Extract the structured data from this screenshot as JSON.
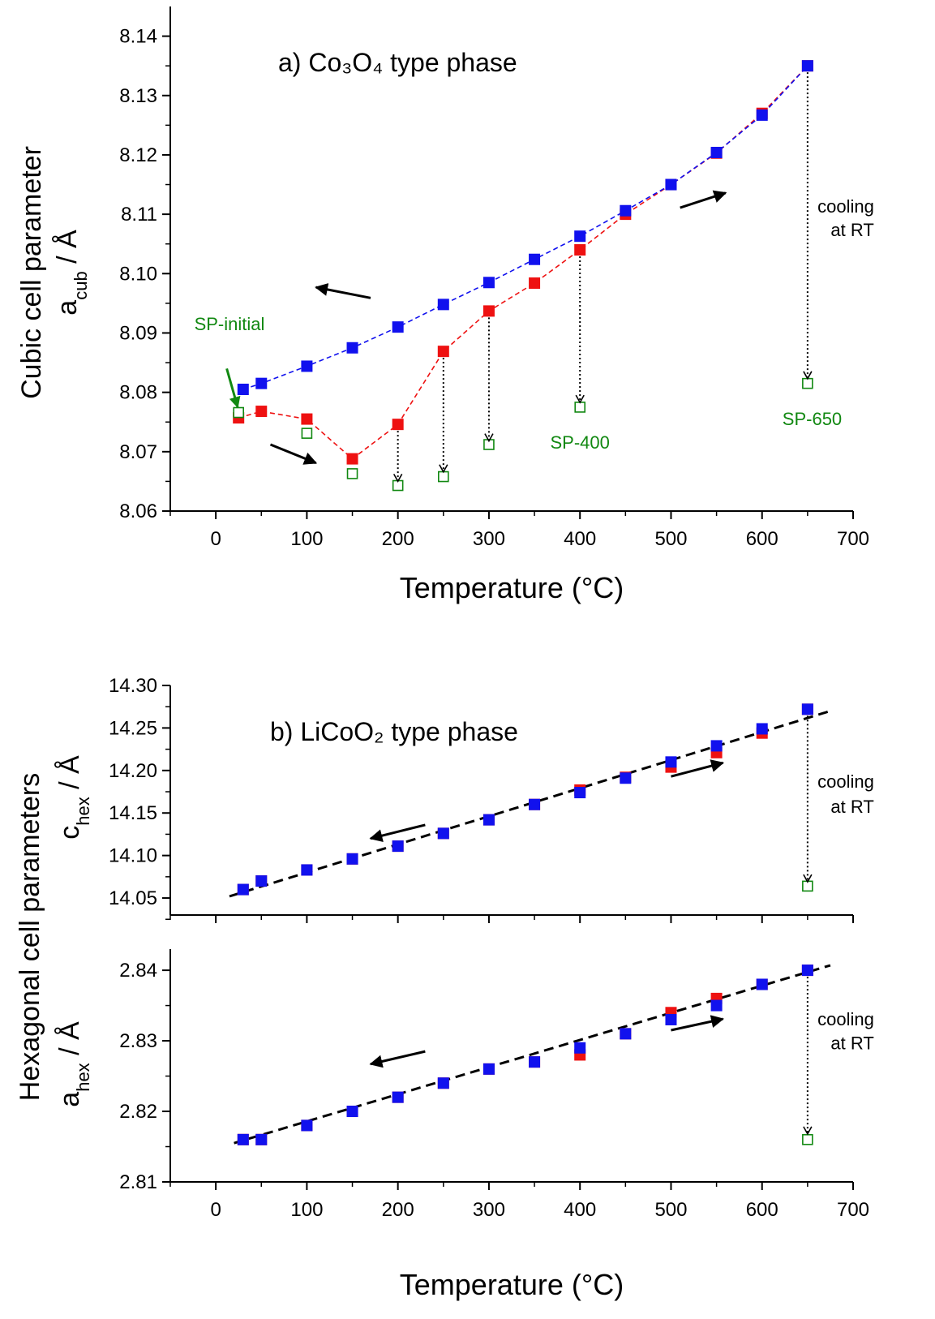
{
  "chart_data": [
    {
      "type": "scatter",
      "title": "a) Co₃O₄ type phase",
      "xlabel": "Temperature (°C)",
      "ylabel_line1": "Cubic cell parameter",
      "ylabel_line2_main": "a",
      "ylabel_line2_sub": "cub",
      "ylabel_line2_rest": " / Å",
      "xlim": [
        -50,
        700
      ],
      "ylim": [
        8.06,
        8.145
      ],
      "xticks": [
        0,
        100,
        200,
        300,
        400,
        500,
        600,
        700
      ],
      "xtick_labels": [
        "0",
        "100",
        "200",
        "300",
        "400",
        "500",
        "600",
        "700"
      ],
      "yticks": [
        8.06,
        8.07,
        8.08,
        8.09,
        8.1,
        8.11,
        8.12,
        8.13,
        8.14
      ],
      "ytick_labels": [
        "8.06",
        "8.07",
        "8.08",
        "8.09",
        "8.10",
        "8.11",
        "8.12",
        "8.13",
        "8.14"
      ],
      "series": [
        {
          "role": "heating",
          "color": "#ee1111",
          "marker": "filled-square",
          "line": "dashed",
          "points": [
            [
              25,
              8.0757
            ],
            [
              50,
              8.0768
            ],
            [
              100,
              8.0755
            ],
            [
              150,
              8.0688
            ],
            [
              200,
              8.0746
            ],
            [
              250,
              8.0869
            ],
            [
              300,
              8.0937
            ],
            [
              350,
              8.0984
            ],
            [
              400,
              8.104
            ],
            [
              450,
              8.11
            ],
            [
              500,
              8.115
            ],
            [
              550,
              8.1203
            ],
            [
              600,
              8.127
            ],
            [
              650,
              8.135
            ]
          ]
        },
        {
          "role": "cooling",
          "color": "#1111ee",
          "marker": "filled-square",
          "line": "dashed",
          "points": [
            [
              30,
              8.0805
            ],
            [
              50,
              8.0815
            ],
            [
              100,
              8.0844
            ],
            [
              150,
              8.0875
            ],
            [
              200,
              8.091
            ],
            [
              250,
              8.0948
            ],
            [
              300,
              8.0985
            ],
            [
              350,
              8.1024
            ],
            [
              400,
              8.1063
            ],
            [
              450,
              8.1106
            ],
            [
              500,
              8.115
            ],
            [
              550,
              8.1204
            ],
            [
              600,
              8.1267
            ],
            [
              650,
              8.135
            ]
          ]
        },
        {
          "role": "room-temperature",
          "color": "#118811",
          "marker": "open-square",
          "line": "none",
          "points": [
            [
              25,
              8.0766
            ],
            [
              100,
              8.0731
            ],
            [
              150,
              8.0663
            ],
            [
              200,
              8.0643
            ],
            [
              250,
              8.0658
            ],
            [
              300,
              8.0712
            ],
            [
              400,
              8.0775
            ],
            [
              650,
              8.0815
            ]
          ]
        }
      ],
      "drop_arrows": [
        [
          200,
          8.0746,
          8.065
        ],
        [
          250,
          8.0869,
          8.0666
        ],
        [
          300,
          8.0937,
          8.0718
        ],
        [
          400,
          8.104,
          8.0783
        ],
        [
          650,
          8.135,
          8.0823
        ]
      ],
      "direction_arrows": [
        {
          "from": [
            170,
            8.0959
          ],
          "to": [
            110,
            8.0977
          ]
        },
        {
          "from": [
            60,
            8.0712
          ],
          "to": [
            110,
            8.0681
          ]
        },
        {
          "from": [
            510,
            8.1111
          ],
          "to": [
            560,
            8.1136
          ]
        }
      ],
      "annotations": [
        {
          "text": "SP-initial",
          "x": 15,
          "y": 8.0905,
          "anchor": "middle",
          "color": "#118811"
        },
        {
          "text": "SP-400",
          "x": 400,
          "y": 8.0705,
          "anchor": "middle",
          "color": "#118811"
        },
        {
          "text": "SP-650",
          "x": 655,
          "y": 8.0745,
          "anchor": "middle",
          "color": "#118811"
        },
        {
          "text": "cooling",
          "x": 723,
          "y": 8.1103,
          "anchor": "end",
          "color": "#000000"
        },
        {
          "text": "at RT",
          "x": 723,
          "y": 8.1063,
          "anchor": "end",
          "color": "#000000"
        }
      ],
      "pointer": {
        "from": [
          12,
          8.084
        ],
        "to": [
          24,
          8.0775
        ],
        "color": "#118811"
      }
    },
    {
      "type": "scatter",
      "title": "b) LiCoO₂ type phase",
      "ylabel_main": "c",
      "ylabel_sub": "hex",
      "ylabel_rest": " / Å",
      "xlim": [
        -50,
        700
      ],
      "ylim": [
        14.03,
        14.3
      ],
      "yticks": [
        14.05,
        14.1,
        14.15,
        14.2,
        14.25,
        14.3
      ],
      "ytick_labels": [
        "14.05",
        "14.10",
        "14.15",
        "14.20",
        "14.25",
        "14.30"
      ],
      "series": [
        {
          "role": "heating",
          "color": "#ee1111",
          "marker": "filled-square",
          "points": [
            [
              30,
              14.06
            ],
            [
              50,
              14.07
            ],
            [
              100,
              14.083
            ],
            [
              150,
              14.096
            ],
            [
              200,
              14.111
            ],
            [
              250,
              14.126
            ],
            [
              300,
              14.142
            ],
            [
              350,
              14.16
            ],
            [
              400,
              14.177
            ],
            [
              450,
              14.192
            ],
            [
              500,
              14.204
            ],
            [
              550,
              14.221
            ],
            [
              600,
              14.244
            ],
            [
              650,
              14.272
            ]
          ]
        },
        {
          "role": "cooling",
          "color": "#1111ee",
          "marker": "filled-square",
          "points": [
            [
              30,
              14.06
            ],
            [
              50,
              14.07
            ],
            [
              100,
              14.083
            ],
            [
              150,
              14.096
            ],
            [
              200,
              14.111
            ],
            [
              250,
              14.126
            ],
            [
              300,
              14.142
            ],
            [
              350,
              14.16
            ],
            [
              400,
              14.174
            ],
            [
              450,
              14.191
            ],
            [
              500,
              14.21
            ],
            [
              550,
              14.229
            ],
            [
              600,
              14.249
            ],
            [
              650,
              14.272
            ]
          ]
        },
        {
          "role": "room-temperature",
          "color": "#118811",
          "marker": "open-square",
          "points": [
            [
              650,
              14.064
            ]
          ]
        }
      ],
      "fit_line": [
        [
          15,
          14.052
        ],
        [
          675,
          14.27
        ]
      ],
      "drop_arrows": [
        [
          650,
          14.272,
          14.069
        ]
      ],
      "direction_arrows": [
        {
          "from": [
            230,
            14.136
          ],
          "to": [
            170,
            14.12
          ]
        },
        {
          "from": [
            500,
            14.193
          ],
          "to": [
            557,
            14.209
          ]
        }
      ],
      "annotations": [
        {
          "text": "cooling",
          "x": 723,
          "y": 14.18,
          "anchor": "end",
          "color": "#000000"
        },
        {
          "text": "at RT",
          "x": 723,
          "y": 14.15,
          "anchor": "end",
          "color": "#000000"
        }
      ]
    },
    {
      "type": "scatter",
      "xlabel": "Temperature (°C)",
      "ylabel_main": "a",
      "ylabel_sub": "hex",
      "ylabel_rest": " / Å",
      "shared_ylabel": "Hexagonal cell parameters",
      "xlim": [
        -50,
        700
      ],
      "ylim": [
        2.81,
        2.843
      ],
      "xticks": [
        0,
        100,
        200,
        300,
        400,
        500,
        600,
        700
      ],
      "xtick_labels": [
        "0",
        "100",
        "200",
        "300",
        "400",
        "500",
        "600",
        "700"
      ],
      "yticks": [
        2.81,
        2.82,
        2.83,
        2.84
      ],
      "ytick_labels": [
        "2.81",
        "2.82",
        "2.83",
        "2.84"
      ],
      "series": [
        {
          "role": "heating",
          "color": "#ee1111",
          "marker": "filled-square",
          "points": [
            [
              30,
              2.816
            ],
            [
              50,
              2.816
            ],
            [
              100,
              2.818
            ],
            [
              150,
              2.82
            ],
            [
              200,
              2.822
            ],
            [
              250,
              2.824
            ],
            [
              300,
              2.826
            ],
            [
              350,
              2.827
            ],
            [
              400,
              2.828
            ],
            [
              450,
              2.831
            ],
            [
              500,
              2.834
            ],
            [
              550,
              2.836
            ],
            [
              600,
              2.838
            ],
            [
              650,
              2.84
            ]
          ]
        },
        {
          "role": "cooling",
          "color": "#1111ee",
          "marker": "filled-square",
          "points": [
            [
              30,
              2.816
            ],
            [
              50,
              2.816
            ],
            [
              100,
              2.818
            ],
            [
              150,
              2.82
            ],
            [
              200,
              2.822
            ],
            [
              250,
              2.824
            ],
            [
              300,
              2.826
            ],
            [
              350,
              2.827
            ],
            [
              400,
              2.829
            ],
            [
              450,
              2.831
            ],
            [
              500,
              2.833
            ],
            [
              550,
              2.835
            ],
            [
              600,
              2.838
            ],
            [
              650,
              2.84
            ]
          ]
        },
        {
          "role": "room-temperature",
          "color": "#118811",
          "marker": "open-square",
          "points": [
            [
              650,
              2.816
            ]
          ]
        }
      ],
      "fit_line": [
        [
          20,
          2.8155
        ],
        [
          675,
          2.8407
        ]
      ],
      "drop_arrows": [
        [
          650,
          2.84,
          2.8168
        ]
      ],
      "direction_arrows": [
        {
          "from": [
            230,
            2.8285
          ],
          "to": [
            170,
            2.8267
          ]
        },
        {
          "from": [
            500,
            2.8315
          ],
          "to": [
            557,
            2.8331
          ]
        }
      ],
      "annotations": [
        {
          "text": "cooling",
          "x": 723,
          "y": 2.8322,
          "anchor": "end",
          "color": "#000000"
        },
        {
          "text": "at RT",
          "x": 723,
          "y": 2.8288,
          "anchor": "end",
          "color": "#000000"
        }
      ]
    }
  ]
}
